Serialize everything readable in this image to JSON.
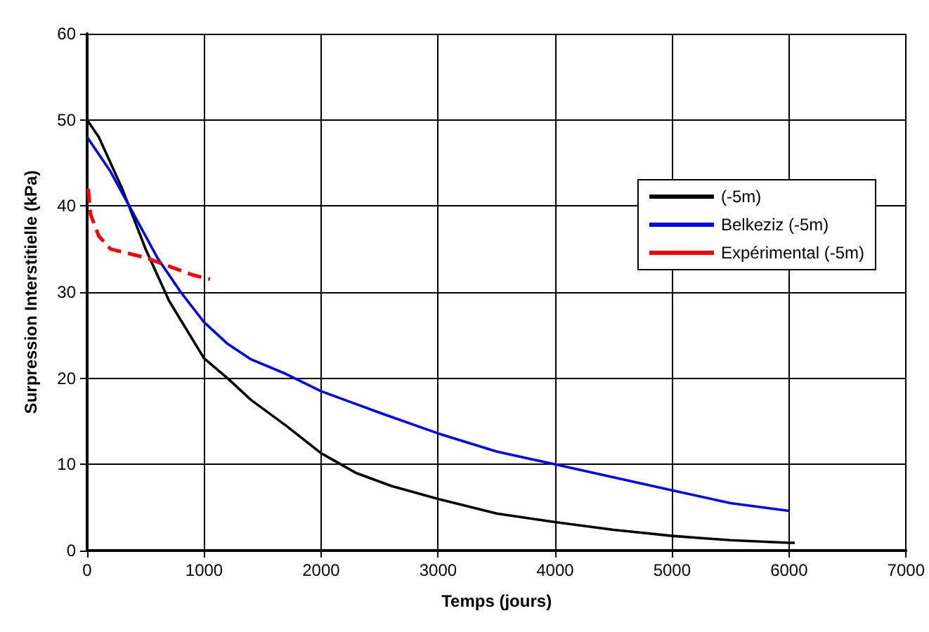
{
  "chart_data": {
    "type": "line",
    "xlabel": "Temps (jours)",
    "ylabel": "Surpression Interstitielle (kPa)",
    "xlim": [
      0,
      7000
    ],
    "xticks": [
      0,
      1000,
      2000,
      3000,
      4000,
      5000,
      6000,
      7000
    ],
    "ylim": [
      0,
      60
    ],
    "yticks": [
      0,
      10,
      20,
      30,
      40,
      50,
      60
    ],
    "grid": true,
    "legend": "right",
    "marker": "none",
    "series": [
      {
        "name": "(-5m)",
        "color": "#000000",
        "line_style": "solid",
        "x": [
          0,
          100,
          300,
          500,
          700,
          1000,
          1200,
          1400,
          1700,
          2000,
          2300,
          2600,
          3000,
          3500,
          4000,
          4500,
          5000,
          5500,
          6000,
          6050
        ],
        "values": [
          50,
          48,
          42,
          35,
          29,
          22.3,
          20,
          17.5,
          14.5,
          11.3,
          9,
          7.5,
          6,
          4.3,
          3.3,
          2.4,
          1.7,
          1.2,
          0.9,
          0.9
        ]
      },
      {
        "name": "Belkeziz (-5m)",
        "color": "#0000ff",
        "line_style": "solid",
        "x": [
          0,
          200,
          400,
          600,
          800,
          1000,
          1200,
          1400,
          1700,
          2000,
          2500,
          3000,
          3500,
          4000,
          4500,
          5000,
          5500,
          6000
        ],
        "values": [
          48,
          44,
          39,
          34,
          30,
          26.5,
          24,
          22.2,
          20.5,
          18.5,
          16,
          13.6,
          11.5,
          10,
          8.5,
          7,
          5.5,
          4.6
        ]
      },
      {
        "name": "Expérimental (-5m)",
        "color": "#ff0000",
        "line_style": "dashed",
        "x": [
          10,
          30,
          100,
          200,
          350,
          500,
          700,
          900,
          1050
        ],
        "values": [
          42,
          39,
          36.5,
          35,
          34.5,
          34,
          33,
          32,
          31.5
        ]
      }
    ]
  }
}
